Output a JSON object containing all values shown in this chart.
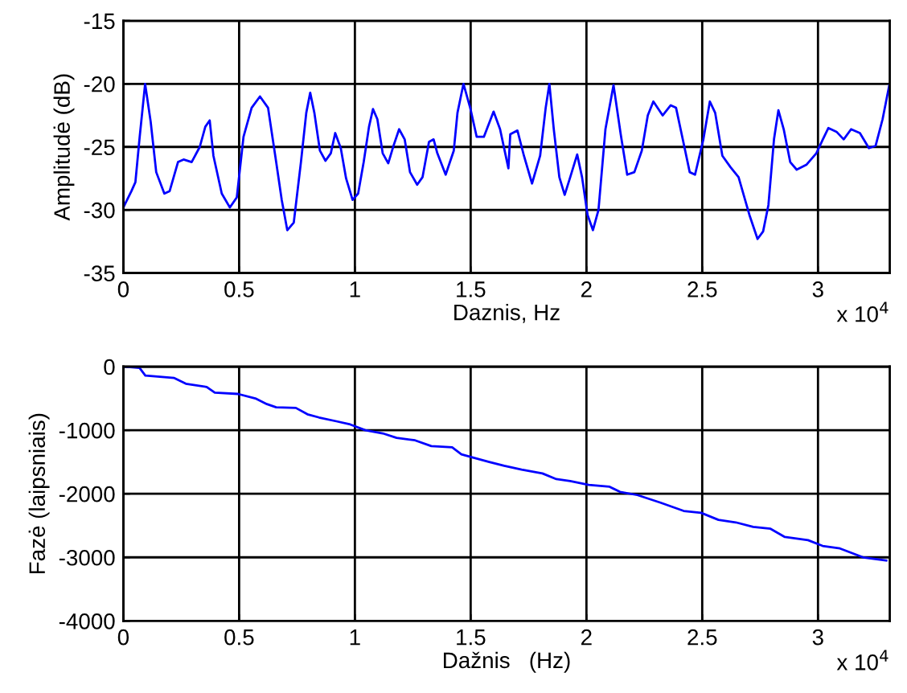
{
  "chart_data": [
    {
      "type": "line",
      "xlabel": "Daznis, Hz",
      "ylabel": "Amplitudė (dB)",
      "annotations": [
        "x 10$^{4}$"
      ],
      "grid": true,
      "xlim": [
        0,
        3.31
      ],
      "ylim": [
        -35,
        -15
      ],
      "yticks": [
        -35,
        -30,
        -25,
        -20,
        -15
      ],
      "xticks": [
        0,
        0.5,
        1,
        1.5,
        2,
        2.5,
        3
      ],
      "series": [
        {
          "color": "#0000ff",
          "x": [
            0,
            0.035,
            0.052,
            0.07,
            0.094,
            0.118,
            0.142,
            0.177,
            0.2,
            0.236,
            0.26,
            0.295,
            0.33,
            0.354,
            0.373,
            0.389,
            0.425,
            0.46,
            0.49,
            0.519,
            0.554,
            0.59,
            0.625,
            0.66,
            0.684,
            0.708,
            0.736,
            0.767,
            0.79,
            0.807,
            0.825,
            0.849,
            0.873,
            0.896,
            0.915,
            0.939,
            0.962,
            0.99,
            1.014,
            1.038,
            1.061,
            1.078,
            1.097,
            1.12,
            1.144,
            1.167,
            1.191,
            1.215,
            1.238,
            1.269,
            1.292,
            1.32,
            1.34,
            1.356,
            1.392,
            1.427,
            1.443,
            1.469,
            1.498,
            1.526,
            1.557,
            1.599,
            1.627,
            1.663,
            1.671,
            1.702,
            1.73,
            1.765,
            1.8,
            1.824,
            1.84,
            1.859,
            1.883,
            1.906,
            1.93,
            1.96,
            1.981,
            2.005,
            2.028,
            2.052,
            2.082,
            2.117,
            2.148,
            2.176,
            2.207,
            2.239,
            2.265,
            2.289,
            2.329,
            2.364,
            2.387,
            2.416,
            2.446,
            2.469,
            2.505,
            2.533,
            2.556,
            2.587,
            2.622,
            2.657,
            2.704,
            2.739,
            2.763,
            2.786,
            2.81,
            2.829,
            2.852,
            2.88,
            2.908,
            2.951,
            2.993,
            3.021,
            3.045,
            3.08,
            3.111,
            3.143,
            3.181,
            3.22,
            3.249,
            3.279,
            3.308
          ],
          "values": [
            -29.8,
            -28.5,
            -27.8,
            -24.3,
            -20,
            -23,
            -27,
            -28.7,
            -28.5,
            -26.2,
            -26,
            -26.2,
            -25,
            -23.4,
            -22.9,
            -25.7,
            -28.7,
            -29.8,
            -29,
            -24.2,
            -21.9,
            -21,
            -21.9,
            -26.2,
            -29.2,
            -31.6,
            -31,
            -26.2,
            -22.3,
            -20.7,
            -22.3,
            -25.3,
            -26.1,
            -25.5,
            -23.9,
            -25.1,
            -27.5,
            -29.2,
            -28.7,
            -26.2,
            -23.4,
            -22,
            -22.8,
            -25.5,
            -26.3,
            -24.9,
            -23.6,
            -24.4,
            -27,
            -28,
            -27.4,
            -24.6,
            -24.4,
            -25.5,
            -27.2,
            -25.3,
            -22.3,
            -20,
            -21.9,
            -24.2,
            -24.2,
            -22.2,
            -23.6,
            -26.7,
            -24,
            -23.7,
            -25.7,
            -27.9,
            -25.7,
            -21.9,
            -20,
            -23.6,
            -27.4,
            -28.8,
            -27.4,
            -25.6,
            -27.4,
            -30.4,
            -31.6,
            -30,
            -23.6,
            -20.1,
            -24,
            -27.2,
            -27,
            -25.3,
            -22.5,
            -21.4,
            -22.5,
            -21.7,
            -21.9,
            -24.4,
            -27,
            -27.2,
            -24.4,
            -21.4,
            -22.3,
            -25.7,
            -26.6,
            -27.4,
            -30.4,
            -32.3,
            -31.7,
            -29.6,
            -24.4,
            -22.1,
            -23.6,
            -26.2,
            -26.8,
            -26.4,
            -25.5,
            -24.4,
            -23.5,
            -23.8,
            -24.4,
            -23.6,
            -23.9,
            -25.1,
            -24.9,
            -22.8,
            -20.1
          ]
        }
      ]
    },
    {
      "type": "line",
      "xlabel": "Dažnis   (Hz)",
      "ylabel": "Fazė (laipsniais)",
      "annotations": [
        "x 10$^{4}$"
      ],
      "grid": true,
      "xlim": [
        0,
        3.31
      ],
      "ylim": [
        -4000,
        0
      ],
      "yticks": [
        -4000,
        -3000,
        -2000,
        -1000,
        0
      ],
      "xticks": [
        0,
        0.5,
        1,
        1.5,
        2,
        2.5,
        3
      ],
      "series": [
        {
          "color": "#0000ff",
          "x": [
            0,
            0.07,
            0.095,
            0.22,
            0.27,
            0.36,
            0.395,
            0.495,
            0.57,
            0.62,
            0.66,
            0.745,
            0.795,
            0.845,
            0.92,
            0.98,
            1.045,
            1.12,
            1.18,
            1.26,
            1.33,
            1.42,
            1.46,
            1.51,
            1.58,
            1.645,
            1.72,
            1.81,
            1.87,
            1.93,
            2.01,
            2.1,
            2.145,
            2.22,
            2.32,
            2.42,
            2.495,
            2.57,
            2.645,
            2.72,
            2.795,
            2.857,
            2.957,
            3.02,
            3.095,
            3.195,
            3.295
          ],
          "values": [
            0,
            -20,
            -140,
            -180,
            -270,
            -320,
            -410,
            -430,
            -500,
            -590,
            -640,
            -650,
            -750,
            -800,
            -860,
            -910,
            -1000,
            -1050,
            -1120,
            -1160,
            -1250,
            -1270,
            -1380,
            -1430,
            -1500,
            -1560,
            -1620,
            -1680,
            -1770,
            -1800,
            -1860,
            -1890,
            -1970,
            -2020,
            -2140,
            -2270,
            -2300,
            -2410,
            -2450,
            -2520,
            -2550,
            -2680,
            -2730,
            -2820,
            -2860,
            -3000,
            -3050
          ]
        }
      ]
    }
  ]
}
